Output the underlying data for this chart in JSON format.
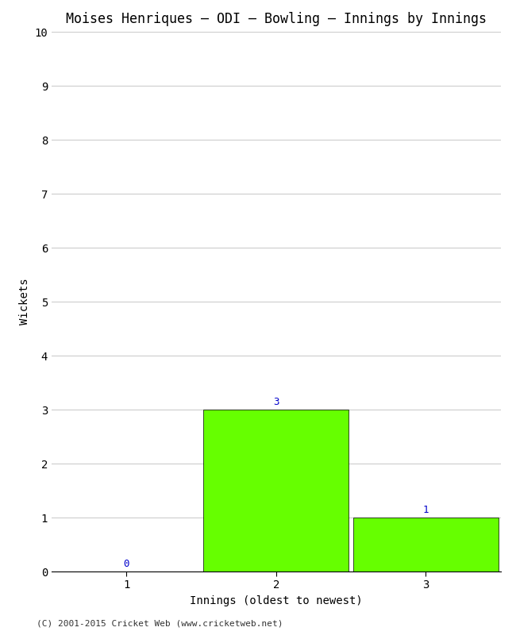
{
  "title": "Moises Henriques – ODI – Bowling – Innings by Innings",
  "xlabel": "Innings (oldest to newest)",
  "ylabel": "Wickets",
  "categories": [
    "1",
    "2",
    "3"
  ],
  "values": [
    0,
    3,
    1
  ],
  "bar_color": "#66ff00",
  "bar_edgecolor": "#000000",
  "ylim": [
    0,
    10
  ],
  "yticks": [
    0,
    1,
    2,
    3,
    4,
    5,
    6,
    7,
    8,
    9,
    10
  ],
  "background_color": "#ffffff",
  "grid_color": "#cccccc",
  "title_fontsize": 12,
  "label_fontsize": 10,
  "tick_fontsize": 10,
  "annotation_color": "#0000cc",
  "annotation_fontsize": 9,
  "footer": "(C) 2001-2015 Cricket Web (www.cricketweb.net)",
  "footer_fontsize": 8
}
